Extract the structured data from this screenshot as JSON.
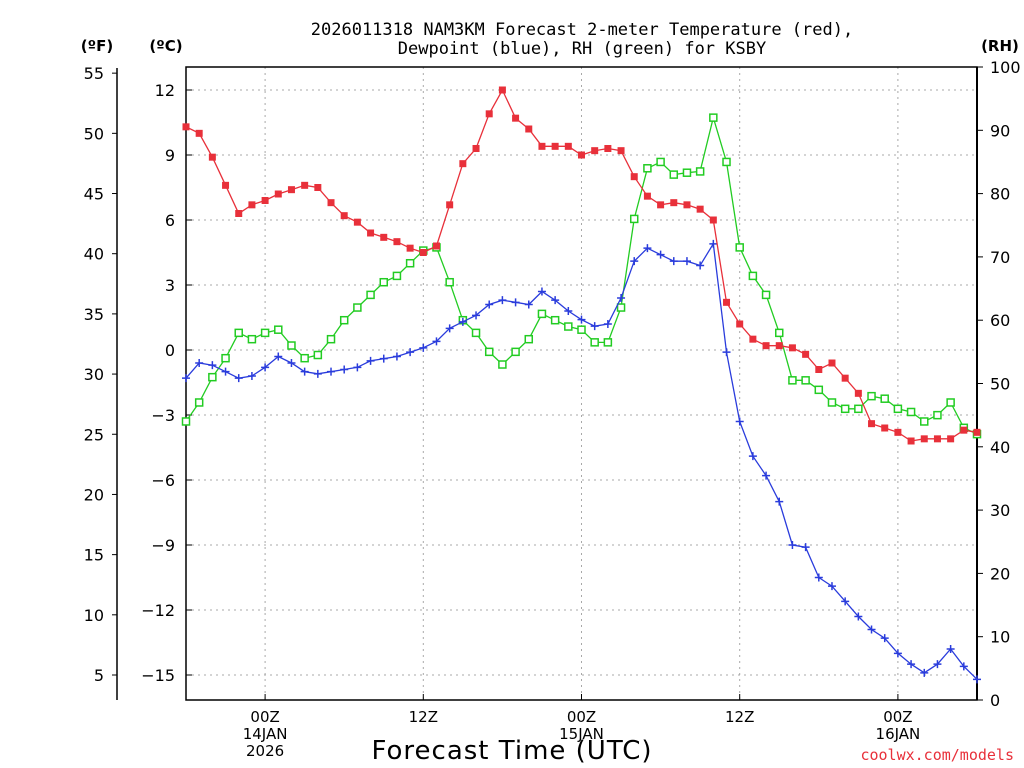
{
  "chart_data": {
    "type": "line",
    "title_line1": "2026011318 NAM3KM Forecast 2-meter Temperature (red),",
    "title_line2": "Dewpoint (blue), RH (green) for KSBY",
    "xlabel": "Forecast Time (UTC)",
    "credit": "coolwx.com/models",
    "units": {
      "fahrenheit": "(ºF)",
      "celsius": "(ºC)",
      "rh": "(RH)"
    },
    "x_hours_range": [
      0,
      60
    ],
    "xticks": [
      {
        "hour": 6,
        "lines": [
          "00Z",
          "14JAN",
          "2026"
        ]
      },
      {
        "hour": 18,
        "lines": [
          "12Z"
        ]
      },
      {
        "hour": 30,
        "lines": [
          "00Z",
          "15JAN"
        ]
      },
      {
        "hour": 42,
        "lines": [
          "12Z"
        ]
      },
      {
        "hour": 54,
        "lines": [
          "00Z",
          "16JAN"
        ]
      }
    ],
    "yaxis_celsius": {
      "ticks": [
        12,
        9,
        6,
        3,
        0,
        -3,
        -6,
        -9,
        -12,
        -15
      ],
      "labels": [
        "12",
        "9",
        "6",
        "3",
        "0",
        "−3",
        "−6",
        "−9",
        "−12",
        "−15"
      ]
    },
    "yaxis_fahrenheit": {
      "ticks": [
        55,
        50,
        45,
        40,
        35,
        30,
        25,
        20,
        15,
        10,
        5
      ]
    },
    "yaxis_rh": {
      "ticks": [
        100,
        90,
        80,
        70,
        60,
        50,
        40,
        30,
        20,
        10,
        0
      ]
    },
    "series": [
      {
        "name": "2-meter Temperature",
        "units": "C",
        "color": "#e8303a",
        "marker": "filled-square",
        "values": [
          10.3,
          10.0,
          8.9,
          7.6,
          6.3,
          6.7,
          6.9,
          7.2,
          7.4,
          7.6,
          7.5,
          6.8,
          6.2,
          5.9,
          5.4,
          5.2,
          5.0,
          4.7,
          4.5,
          4.8,
          6.7,
          8.6,
          9.3,
          10.9,
          12.0,
          10.7,
          10.2,
          9.4,
          9.4,
          9.4,
          9.0,
          9.2,
          9.3,
          9.2,
          8.0,
          7.1,
          6.7,
          6.8,
          6.7,
          6.5,
          6.0,
          2.2,
          1.2,
          0.5,
          0.2,
          0.2,
          0.1,
          -0.2,
          -0.9,
          -0.6,
          -1.3,
          -2.0,
          -3.4,
          -3.6,
          -3.8,
          -4.2,
          -4.1,
          -4.1,
          -4.1,
          -3.7,
          -3.8
        ]
      },
      {
        "name": "Dewpoint",
        "units": "C",
        "color": "#2a3cdc",
        "marker": "plus",
        "values": [
          -1.3,
          -0.6,
          -0.7,
          -1.0,
          -1.3,
          -1.2,
          -0.8,
          -0.3,
          -0.6,
          -1.0,
          -1.1,
          -1.0,
          -0.9,
          -0.8,
          -0.5,
          -0.4,
          -0.3,
          -0.1,
          0.1,
          0.4,
          1.0,
          1.3,
          1.6,
          2.1,
          2.3,
          2.2,
          2.1,
          2.7,
          2.3,
          1.8,
          1.4,
          1.1,
          1.2,
          2.4,
          4.1,
          4.7,
          4.4,
          4.1,
          4.1,
          3.9,
          4.9,
          -0.1,
          -3.3,
          -4.9,
          -5.8,
          -7.0,
          -9.0,
          -9.1,
          -10.5,
          -10.9,
          -11.6,
          -12.3,
          -12.9,
          -13.3,
          -14.0,
          -14.5,
          -14.9,
          -14.5,
          -13.8,
          -14.6,
          -15.2
        ]
      },
      {
        "name": "Relative Humidity",
        "units": "%",
        "color": "#22cc22",
        "marker": "open-square",
        "values": [
          44,
          47,
          51,
          54,
          58,
          57,
          58,
          58.5,
          56,
          54,
          54.5,
          57,
          60,
          62,
          64,
          66,
          67,
          69,
          71,
          71.5,
          66,
          60,
          58,
          55,
          53,
          55,
          57,
          61,
          60,
          59,
          58.5,
          56.5,
          56.5,
          62,
          76,
          84,
          85,
          83,
          83.3,
          83.5,
          92,
          85,
          71.5,
          67,
          64,
          58,
          50.5,
          50.5,
          49,
          47,
          46,
          46,
          48,
          47.6,
          46,
          45.5,
          44,
          45,
          47,
          43,
          42
        ]
      }
    ]
  }
}
